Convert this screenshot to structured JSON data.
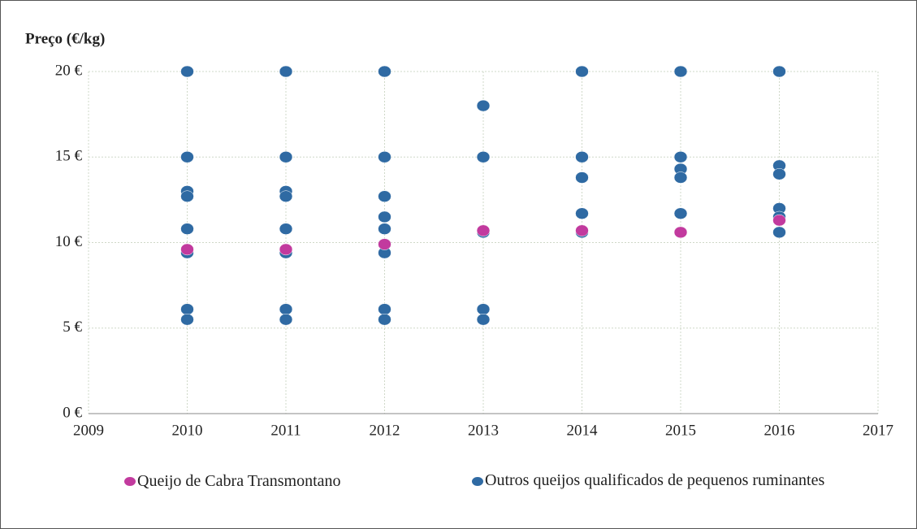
{
  "chart_data": {
    "type": "scatter",
    "title": "Preço (€/kg)",
    "xlim": [
      2009,
      2017
    ],
    "xticks": [
      2009,
      2010,
      2011,
      2012,
      2013,
      2014,
      2015,
      2016,
      2017
    ],
    "ylim": [
      0,
      20
    ],
    "yticks": [
      {
        "value": 0,
        "label": "0 €"
      },
      {
        "value": 5,
        "label": "5 €"
      },
      {
        "value": 10,
        "label": "10 €"
      },
      {
        "value": 15,
        "label": "15 €"
      },
      {
        "value": 20,
        "label": "20 €"
      }
    ],
    "grid": true,
    "series": [
      {
        "name": "Outros queijos qualificados de pequenos ruminantes",
        "color": "#2f6aa3",
        "x": [
          2010,
          2010,
          2010,
          2010,
          2010,
          2010,
          2010,
          2010,
          2011,
          2011,
          2011,
          2011,
          2011,
          2011,
          2011,
          2011,
          2012,
          2012,
          2012,
          2012,
          2012,
          2012,
          2012,
          2012,
          2013,
          2013,
          2013,
          2013,
          2013,
          2014,
          2014,
          2014,
          2014,
          2014,
          2015,
          2015,
          2015,
          2015,
          2015,
          2015,
          2016,
          2016,
          2016,
          2016,
          2016,
          2016
        ],
        "values": [
          20,
          15,
          13,
          12.7,
          10.8,
          9.4,
          6.1,
          5.5,
          20,
          15,
          13,
          12.7,
          10.8,
          9.4,
          6.1,
          5.5,
          20,
          15,
          12.7,
          11.5,
          10.8,
          9.4,
          6.1,
          5.5,
          18,
          15,
          10.6,
          6.1,
          5.5,
          20,
          15,
          13.8,
          11.7,
          10.6,
          20,
          15,
          14.3,
          13.8,
          11.7,
          10.6,
          20,
          14.5,
          14,
          12,
          11.5,
          10.6
        ]
      },
      {
        "name": "Queijo de Cabra Transmontano",
        "color": "#c23a9e",
        "x": [
          2010,
          2011,
          2012,
          2013,
          2014,
          2015,
          2016
        ],
        "values": [
          9.6,
          9.6,
          9.9,
          10.7,
          10.7,
          10.6,
          11.3
        ]
      }
    ]
  }
}
